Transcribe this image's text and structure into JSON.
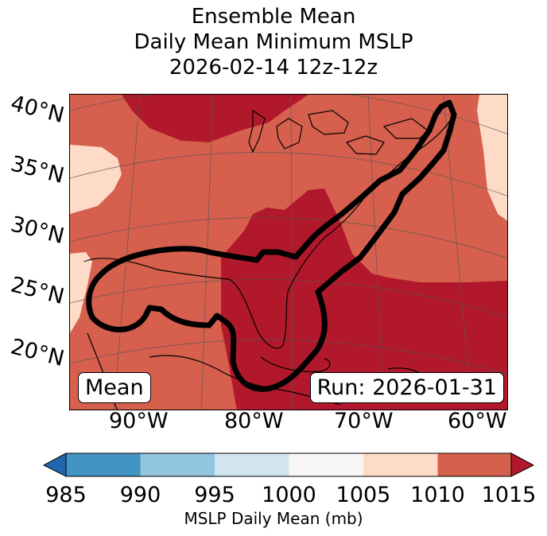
{
  "title": {
    "line1": "Ensemble Mean",
    "line2": "Daily Mean Minimum MSLP",
    "line3": "2026-02-14 12z-12z"
  },
  "lat_labels": [
    "40°N",
    "35°N",
    "30°N",
    "25°N",
    "20°N"
  ],
  "lon_labels": [
    "90°W",
    "80°W",
    "70°W",
    "60°W"
  ],
  "badges": {
    "left": "Mean",
    "right": "Run: 2026-01-31"
  },
  "colorbar": {
    "ticks": [
      "985",
      "990",
      "995",
      "1000",
      "1005",
      "1010",
      "1015"
    ],
    "colors": [
      "#4393c3",
      "#92c5de",
      "#d1e5f0",
      "#f7f7f7",
      "#fddbc7",
      "#d6604d"
    ],
    "under_color": "#2166ac",
    "over_color": "#b2182b",
    "label": "MSLP Daily Mean (mb)"
  },
  "map_colors": {
    "base": "#d6604d",
    "low": "#b2182b",
    "high": "#fddbc7",
    "contour": "#000000",
    "coast": "#000000",
    "grid": "#555555"
  }
}
